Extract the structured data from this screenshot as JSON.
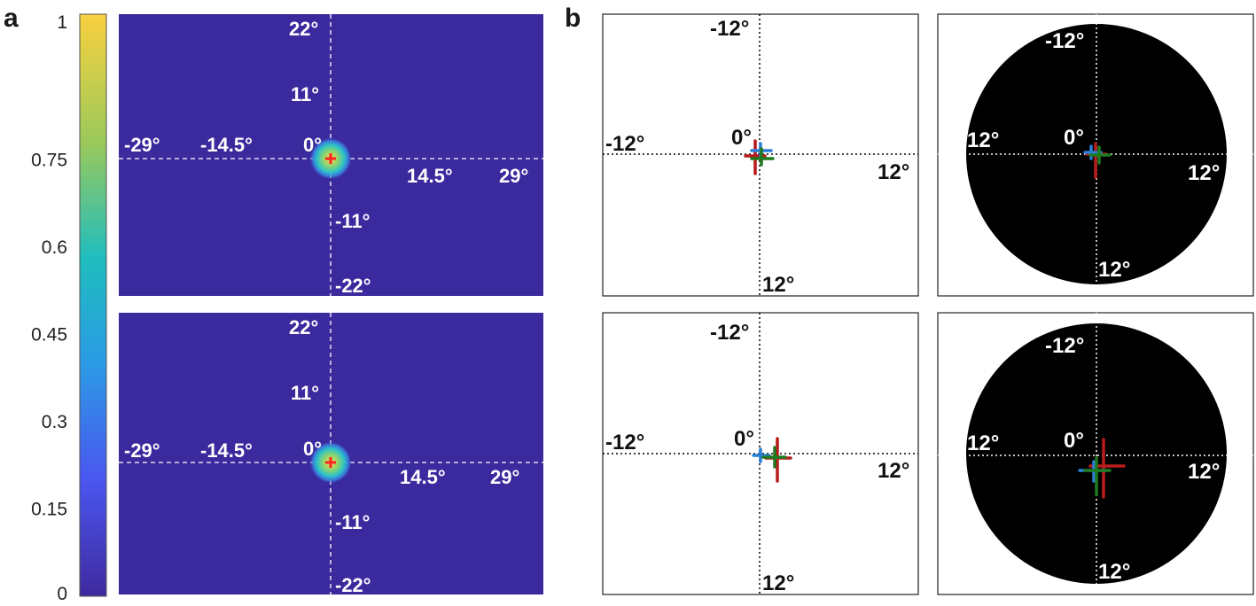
{
  "panel_labels": {
    "a": "a",
    "b": "b"
  },
  "colorbar": {
    "ticks": [
      "1",
      "0.75",
      "0.6",
      "0.45",
      "0.3",
      "0.15",
      "0"
    ],
    "tick_values": [
      1,
      0.75,
      0.6,
      0.45,
      0.3,
      0.15,
      0
    ],
    "colors": [
      "#f9d13f",
      "#9bc95a",
      "#1fbdbf",
      "#2b9be4",
      "#4a56f0",
      "#3f2a9e"
    ]
  },
  "heatmaps": {
    "background_color": "#3a2a9e",
    "hotspot_color": "#ff2222",
    "labels": {
      "y_top": "22°",
      "y_mid_top": "11°",
      "center": "0°",
      "x_far_left": "-29°",
      "x_left": "-14.5°",
      "x_right": "14.5°",
      "x_far_right": "29°",
      "y_mid_bottom": "-11°",
      "y_bottom": "-22°"
    }
  },
  "maps": {
    "labels": {
      "top": "-12°",
      "left": "-12°",
      "center": "0°",
      "right": "12°",
      "bottom": "12°"
    },
    "marker_colors": {
      "red": "#b81c1c",
      "blue": "#2b7fd8",
      "green": "#1f7a1f"
    }
  }
}
